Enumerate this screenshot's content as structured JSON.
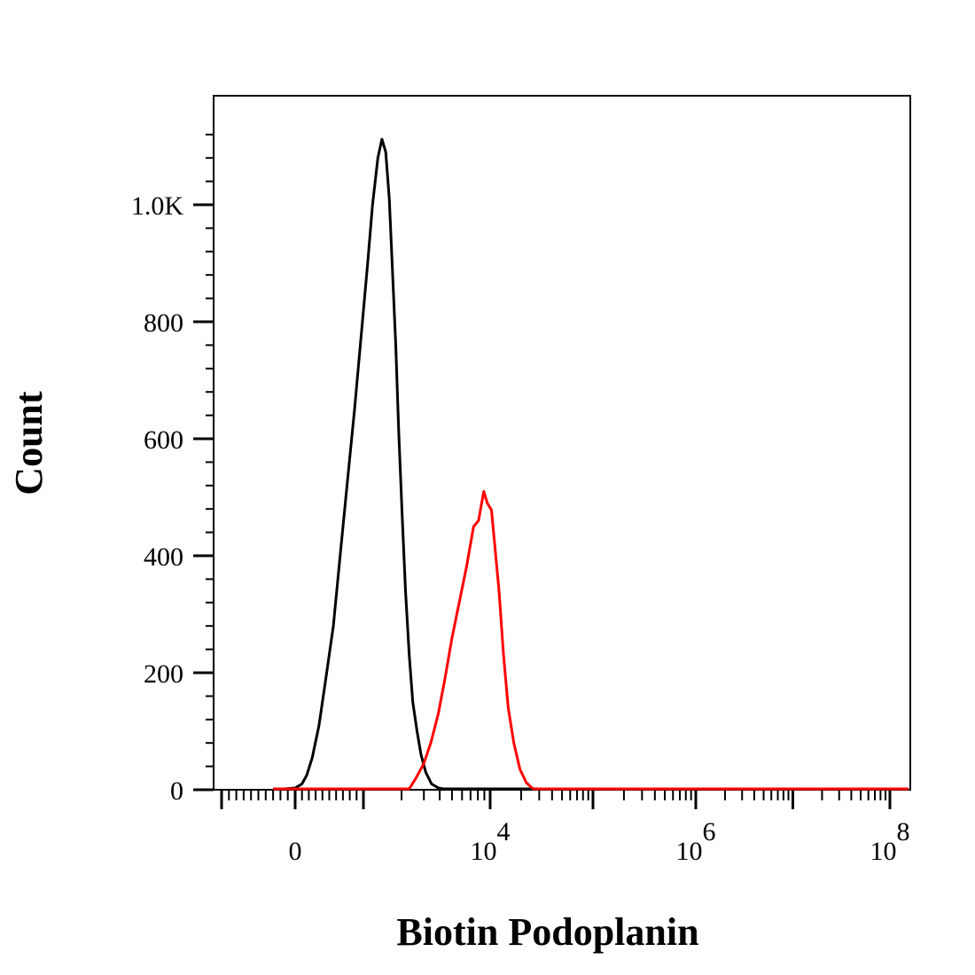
{
  "chart_data": {
    "type": "line",
    "title": "",
    "xlabel": "Biotin Podoplanin",
    "ylabel": "Count",
    "ylim": [
      0,
      1150
    ],
    "x_scale": "biexponential",
    "grid": false,
    "legend": "none",
    "y_ticks": [
      {
        "value": 0,
        "label": "0"
      },
      {
        "value": 200,
        "label": "200"
      },
      {
        "value": 400,
        "label": "400"
      },
      {
        "value": 600,
        "label": "600"
      },
      {
        "value": 800,
        "label": "800"
      },
      {
        "value": 1000,
        "label": "1.0K"
      }
    ],
    "x_ticks": [
      {
        "value": 0,
        "base": "0",
        "exp": ""
      },
      {
        "value": 10000,
        "base": "10",
        "exp": "4"
      },
      {
        "value": 1000000,
        "base": "10",
        "exp": "6"
      },
      {
        "value": 100000000,
        "base": "10",
        "exp": "8"
      }
    ],
    "series": [
      {
        "color": "#000000",
        "points": [
          [
            -300,
            0
          ],
          [
            -150,
            0
          ],
          [
            0,
            3
          ],
          [
            100,
            10
          ],
          [
            170,
            25
          ],
          [
            250,
            55
          ],
          [
            350,
            110
          ],
          [
            450,
            190
          ],
          [
            560,
            280
          ],
          [
            650,
            390
          ],
          [
            760,
            520
          ],
          [
            870,
            650
          ],
          [
            970,
            780
          ],
          [
            1080,
            900
          ],
          [
            1180,
            1000
          ],
          [
            1300,
            1080
          ],
          [
            1400,
            1112
          ],
          [
            1500,
            1090
          ],
          [
            1600,
            1010
          ],
          [
            1700,
            880
          ],
          [
            1800,
            760
          ],
          [
            1900,
            610
          ],
          [
            2020,
            470
          ],
          [
            2150,
            340
          ],
          [
            2300,
            230
          ],
          [
            2450,
            150
          ],
          [
            2650,
            100
          ],
          [
            2850,
            60
          ],
          [
            3100,
            30
          ],
          [
            3450,
            10
          ],
          [
            3900,
            3
          ],
          [
            4300,
            0
          ],
          [
            8000,
            0
          ],
          [
            30000,
            0
          ],
          [
            1000000,
            0
          ],
          [
            10000000,
            0
          ],
          [
            180000000,
            0
          ]
        ]
      },
      {
        "color": "#ff0000",
        "points": [
          [
            -300,
            0
          ],
          [
            0,
            0
          ],
          [
            1000,
            0
          ],
          [
            2000,
            0
          ],
          [
            2300,
            0
          ],
          [
            2600,
            20
          ],
          [
            3000,
            45
          ],
          [
            3400,
            80
          ],
          [
            3900,
            130
          ],
          [
            4400,
            190
          ],
          [
            5000,
            260
          ],
          [
            5700,
            320
          ],
          [
            6500,
            380
          ],
          [
            7400,
            450
          ],
          [
            8100,
            460
          ],
          [
            8900,
            510
          ],
          [
            9500,
            490
          ],
          [
            10300,
            478
          ],
          [
            11200,
            410
          ],
          [
            12200,
            340
          ],
          [
            13500,
            230
          ],
          [
            15000,
            140
          ],
          [
            17000,
            80
          ],
          [
            19500,
            35
          ],
          [
            22500,
            12
          ],
          [
            26000,
            2
          ],
          [
            29000,
            0
          ],
          [
            100000,
            0
          ],
          [
            1000000,
            0
          ],
          [
            180000000,
            0
          ]
        ]
      }
    ]
  }
}
